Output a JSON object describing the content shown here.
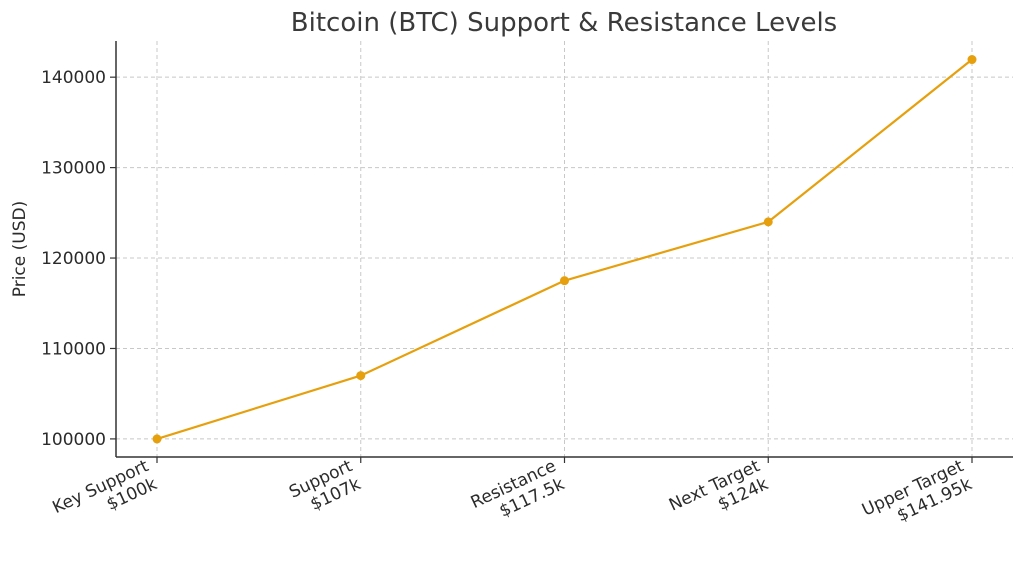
{
  "chart_data": {
    "type": "line",
    "title": "Bitcoin (BTC) Support & Resistance Levels",
    "xlabel": "",
    "ylabel": "Price (USD)",
    "categories": [
      [
        "Key Support",
        "$100k"
      ],
      [
        "Support",
        "$107k"
      ],
      [
        "Resistance",
        "$117.5k"
      ],
      [
        "Next Target",
        "$124k"
      ],
      [
        "Upper Target",
        "$141.95k"
      ]
    ],
    "values": [
      100000,
      107000,
      117500,
      124000,
      141950
    ],
    "ylim": [
      98000,
      144000
    ],
    "yticks": [
      100000,
      110000,
      120000,
      130000,
      140000
    ],
    "grid": true,
    "line_color": "#e6a00e",
    "marker_color": "#e6a00e"
  }
}
